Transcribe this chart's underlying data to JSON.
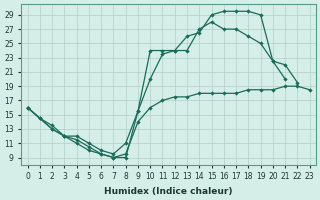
{
  "xlabel": "Humidex (Indice chaleur)",
  "ylabel": "",
  "xlim": [
    -0.5,
    23.5
  ],
  "ylim": [
    8,
    30.5
  ],
  "xticks": [
    0,
    1,
    2,
    3,
    4,
    5,
    6,
    7,
    8,
    9,
    10,
    11,
    12,
    13,
    14,
    15,
    16,
    17,
    18,
    19,
    20,
    21,
    22,
    23
  ],
  "yticks": [
    9,
    11,
    13,
    15,
    17,
    19,
    21,
    23,
    25,
    27,
    29
  ],
  "bg_color": "#d6eee8",
  "grid_color": "#b0cfc8",
  "line_color": "#1a6b5a",
  "curve1_x": [
    0,
    1,
    2,
    3,
    4,
    5,
    6,
    7,
    8,
    9,
    10,
    11,
    12,
    13,
    14,
    15,
    16,
    17,
    18,
    19,
    20,
    21
  ],
  "curve1_y": [
    16,
    14.5,
    13,
    12,
    11,
    10,
    9.5,
    9,
    9,
    15.5,
    24,
    24,
    24,
    26,
    26.5,
    29,
    29.5,
    29.5,
    29.5,
    29,
    22.5,
    20
  ],
  "curve2_x": [
    0,
    1,
    2,
    3,
    4,
    5,
    6,
    7,
    8,
    9,
    10,
    11,
    12,
    13,
    14,
    15,
    16,
    17,
    18,
    19,
    20,
    21,
    22
  ],
  "curve2_y": [
    16,
    14.5,
    13.5,
    12,
    12,
    11,
    10,
    9.5,
    11,
    15.5,
    20,
    23.5,
    24,
    24,
    27,
    28,
    27,
    27,
    26,
    25,
    22.5,
    22,
    19.5
  ],
  "curve3_x": [
    0,
    2,
    3,
    4,
    5,
    6,
    7,
    8,
    9,
    10,
    11,
    12,
    13,
    14,
    15,
    16,
    17,
    18,
    19,
    20,
    21,
    22,
    23
  ],
  "curve3_y": [
    16,
    13,
    12,
    11.5,
    10.5,
    9.5,
    9,
    9.5,
    14,
    16,
    17,
    17.5,
    17.5,
    18,
    18,
    18,
    18,
    18.5,
    18.5,
    18.5,
    19,
    19,
    18.5
  ]
}
